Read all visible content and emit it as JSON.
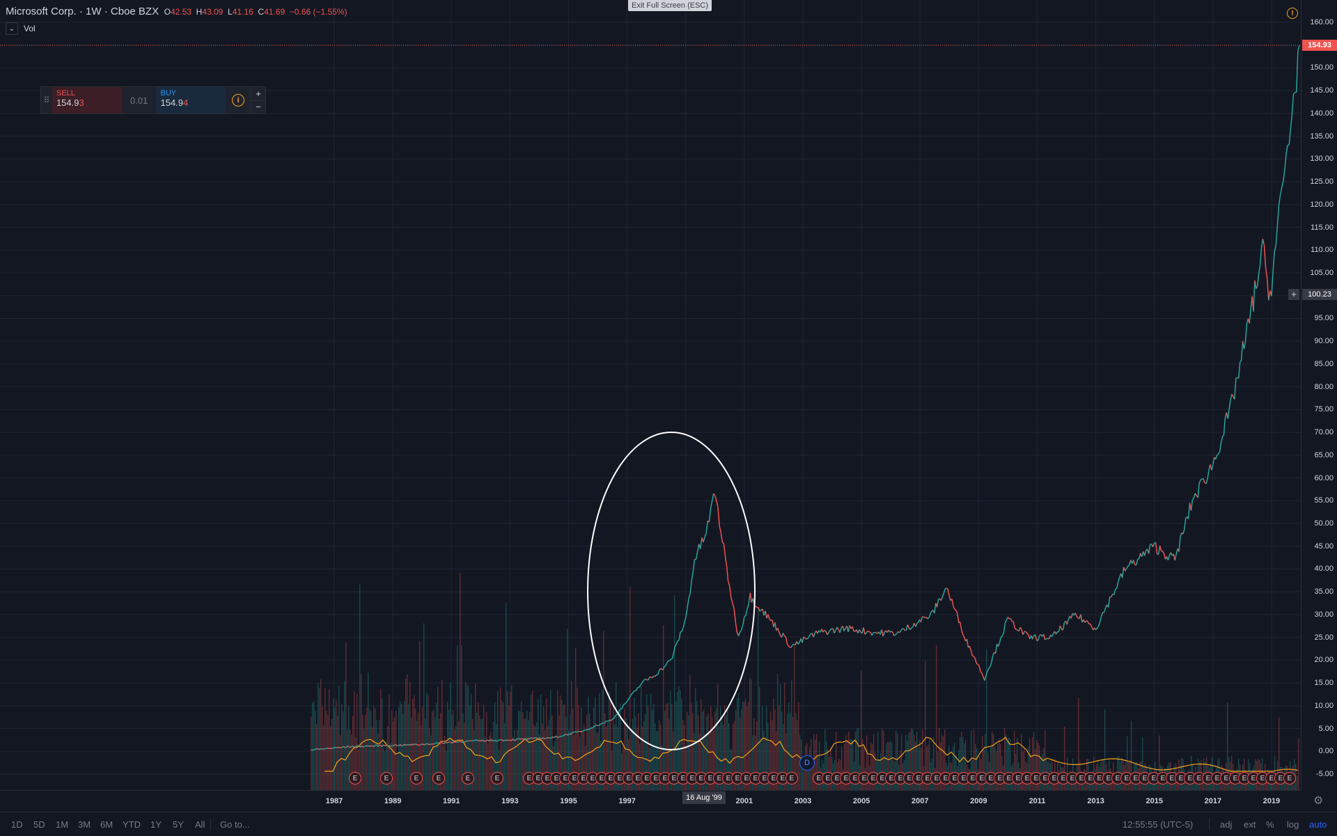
{
  "legend": {
    "symbol": "Microsoft Corp.",
    "interval": "1W",
    "exchange": "Cboe BZX",
    "open_label": "O",
    "open": "42.53",
    "high_label": "H",
    "high": "43.09",
    "low_label": "L",
    "low": "41.16",
    "close_label": "C",
    "close": "41.69",
    "change": "−0.66 (−1.55%)",
    "change_color": "#ef5350"
  },
  "volume_indicator": {
    "label": "Vol",
    "toggle_icon": "chevron-down-icon"
  },
  "trade_panel": {
    "sell_label": "SELL",
    "sell_price_main": "154.9",
    "sell_price_last": "3",
    "spread": "0.01",
    "buy_label": "BUY",
    "buy_price_main": "154.9",
    "buy_price_last": "4",
    "info_icon": "info-icon",
    "plus": "+",
    "minus": "−"
  },
  "exit_fullscreen": "Exit Full Screen (ESC)",
  "last_price_tag": "154.93",
  "crosshair": {
    "price": "100.23",
    "time": "16 Aug '99",
    "plus": "+"
  },
  "dividend_marker": "D",
  "earnings_marker": "E",
  "price_axis_labels": [
    "160.00",
    "155.00",
    "150.00",
    "145.00",
    "140.00",
    "135.00",
    "130.00",
    "125.00",
    "120.00",
    "115.00",
    "110.00",
    "105.00",
    "100.00",
    "95.00",
    "90.00",
    "85.00",
    "80.00",
    "75.00",
    "70.00",
    "65.00",
    "60.00",
    "55.00",
    "50.00",
    "45.00",
    "40.00",
    "35.00",
    "30.00",
    "25.00",
    "20.00",
    "15.00",
    "10.00",
    "5.00",
    "0.00",
    "-5.00"
  ],
  "time_axis_labels": [
    "1987",
    "1989",
    "1991",
    "1993",
    "1995",
    "1997",
    "1",
    "2001",
    "2003",
    "2005",
    "2007",
    "2009",
    "2011",
    "2013",
    "2015",
    "2017",
    "2019"
  ],
  "bottom_bar": {
    "timeframes": [
      "1D",
      "5D",
      "1M",
      "3M",
      "6M",
      "YTD",
      "1Y",
      "5Y",
      "All"
    ],
    "goto": "Go to...",
    "clock": "12:55:55 (UTC-5)",
    "adj": "adj",
    "ext": "ext",
    "percent": "%",
    "log": "log",
    "auto": "auto"
  },
  "colors": {
    "up": "#26a69a",
    "down": "#ef5350",
    "ma": "#f7a21b",
    "background": "#131722",
    "accent": "#2962ff"
  },
  "chart_data": {
    "type": "line",
    "title": "",
    "ylim": [
      -7,
      162
    ],
    "series": [
      {
        "name": "",
        "x": [
          1986.2,
          1986.6,
          1987.5,
          1988.5,
          1990.0,
          1991.5,
          1993.0,
          1994.5,
          1995.5,
          1996.5,
          1997.5,
          1998.0,
          1998.5,
          1999.0,
          1999.3,
          1999.7,
          2000.0,
          2000.4,
          2000.8,
          2001.2,
          2002.0,
          2002.6,
          2003.5,
          2004.5,
          2005.5,
          2006.3,
          2006.8,
          2007.4,
          2007.9,
          2008.6,
          2009.2,
          2010.0,
          2010.7,
          2011.5,
          2012.3,
          2013.0,
          2014.0,
          2015.0,
          2015.7,
          2016.3,
          2017.0,
          2017.6,
          2018.2,
          2018.7,
          2018.95,
          2019.3,
          2019.7,
          2019.95
        ],
        "y": [
          0.3,
          0.5,
          1.0,
          1.2,
          1.5,
          2.2,
          2.5,
          3.0,
          4.5,
          7.0,
          15.0,
          17.0,
          20.0,
          29.0,
          42.0,
          48.0,
          57.0,
          40.0,
          25.0,
          34.0,
          28.0,
          23.0,
          26.0,
          27.0,
          26.0,
          26.0,
          28.0,
          30.0,
          36.0,
          24.0,
          16.0,
          29.0,
          25.0,
          25.0,
          30.0,
          27.0,
          40.0,
          45.0,
          42.0,
          55.0,
          63.0,
          75.0,
          93.0,
          110.0,
          100.0,
          120.0,
          140.0,
          154.9
        ]
      }
    ]
  }
}
